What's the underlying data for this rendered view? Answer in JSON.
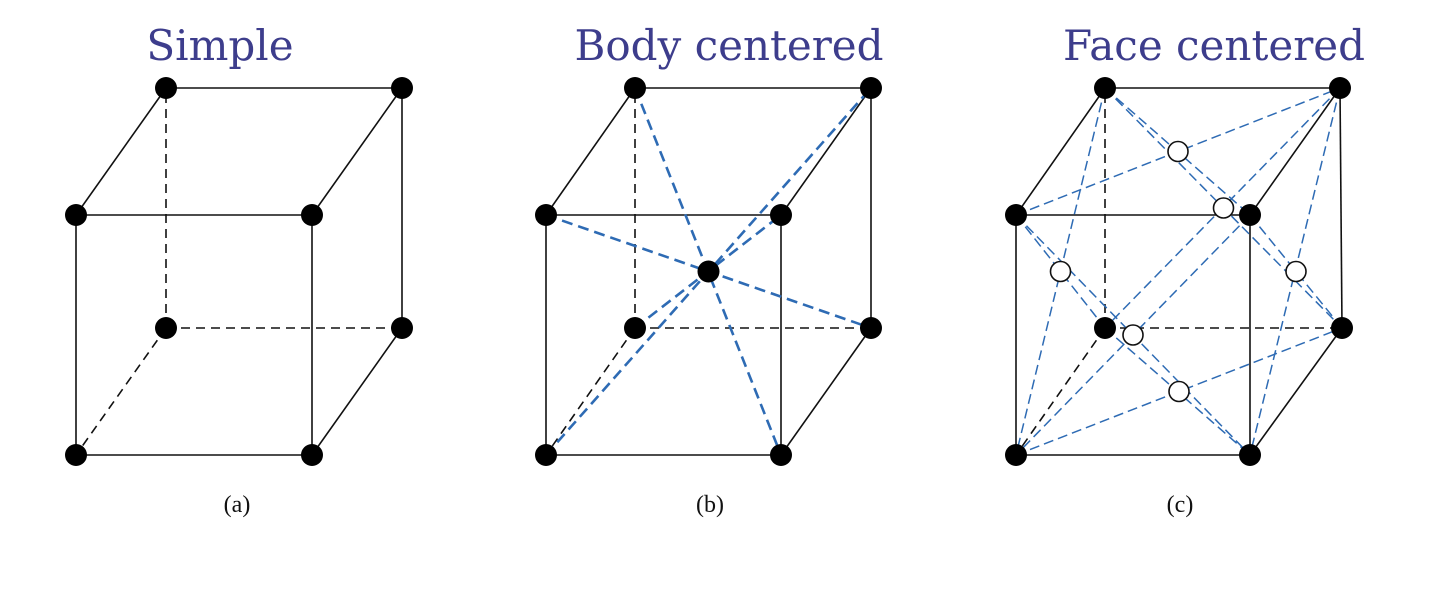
{
  "panels": [
    {
      "id": "a",
      "title": "Simple",
      "caption": "(a)",
      "variant": "simple"
    },
    {
      "id": "b",
      "title": "Body centered",
      "caption": "(b)",
      "variant": "body-centered"
    },
    {
      "id": "c",
      "title": "Face centered",
      "caption": "(c)",
      "variant": "face-centered"
    }
  ],
  "colors": {
    "title": "#3d3d8c",
    "edge": "#111111",
    "diagonal": "#2e6bb4",
    "atom": "#000000",
    "face_atom_fill": "#ffffff"
  }
}
